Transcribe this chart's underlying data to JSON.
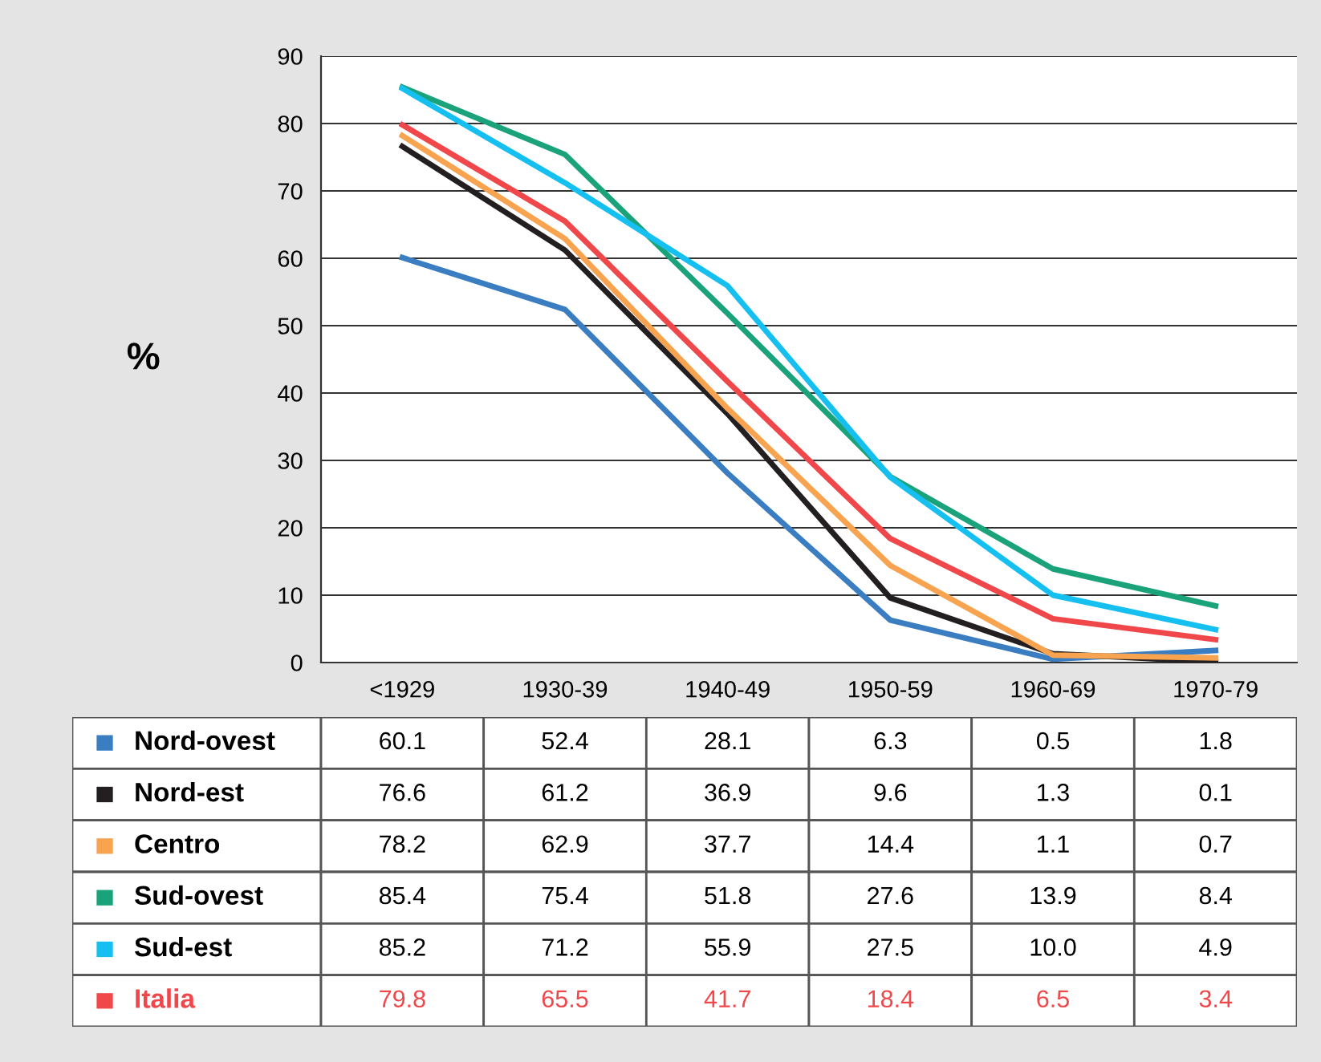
{
  "chart_data": {
    "type": "line",
    "ylabel": "%",
    "categories": [
      "<1929",
      "1930-39",
      "1940-49",
      "1950-59",
      "1960-69",
      "1970-79"
    ],
    "series": [
      {
        "name": "Nord-ovest",
        "color": "#3a7dc0",
        "values": [
          60.1,
          52.4,
          28.1,
          6.3,
          0.5,
          1.8
        ],
        "value_labels": [
          "60.1",
          "52.4",
          "28.1",
          "6.3",
          "0.5",
          "1.8"
        ]
      },
      {
        "name": "Nord-est",
        "color": "#231f20",
        "values": [
          76.6,
          61.2,
          36.9,
          9.6,
          1.3,
          0.1
        ],
        "value_labels": [
          "76.6",
          "61.2",
          "36.9",
          "9.6",
          "1.3",
          "0.1"
        ]
      },
      {
        "name": "Centro",
        "color": "#f7a350",
        "values": [
          78.2,
          62.9,
          37.7,
          14.4,
          1.1,
          0.7
        ],
        "value_labels": [
          "78.2",
          "62.9",
          "37.7",
          "14.4",
          "1.1",
          "0.7"
        ]
      },
      {
        "name": "Sud-ovest",
        "color": "#1aa37a",
        "values": [
          85.4,
          75.4,
          51.8,
          27.6,
          13.9,
          8.4
        ],
        "value_labels": [
          "85.4",
          "75.4",
          "51.8",
          "27.6",
          "13.9",
          "8.4"
        ]
      },
      {
        "name": "Sud-est",
        "color": "#15c0f0",
        "values": [
          85.2,
          71.2,
          55.9,
          27.5,
          10.0,
          4.9
        ],
        "value_labels": [
          "85.2",
          "71.2",
          "55.9",
          "27.5",
          "10.0",
          "4.9"
        ]
      },
      {
        "name": "Italia",
        "color": "#f0474a",
        "values": [
          79.8,
          65.5,
          41.7,
          18.4,
          6.5,
          3.4
        ],
        "value_labels": [
          "79.8",
          "65.5",
          "41.7",
          "18.4",
          "6.5",
          "3.4"
        ]
      }
    ],
    "ylim": [
      0,
      90
    ],
    "yticks": [
      0,
      10,
      20,
      30,
      40,
      50,
      60,
      70,
      80,
      90
    ],
    "grid": "y",
    "legend": "bottom",
    "marker": "none",
    "line_style": "solid"
  }
}
